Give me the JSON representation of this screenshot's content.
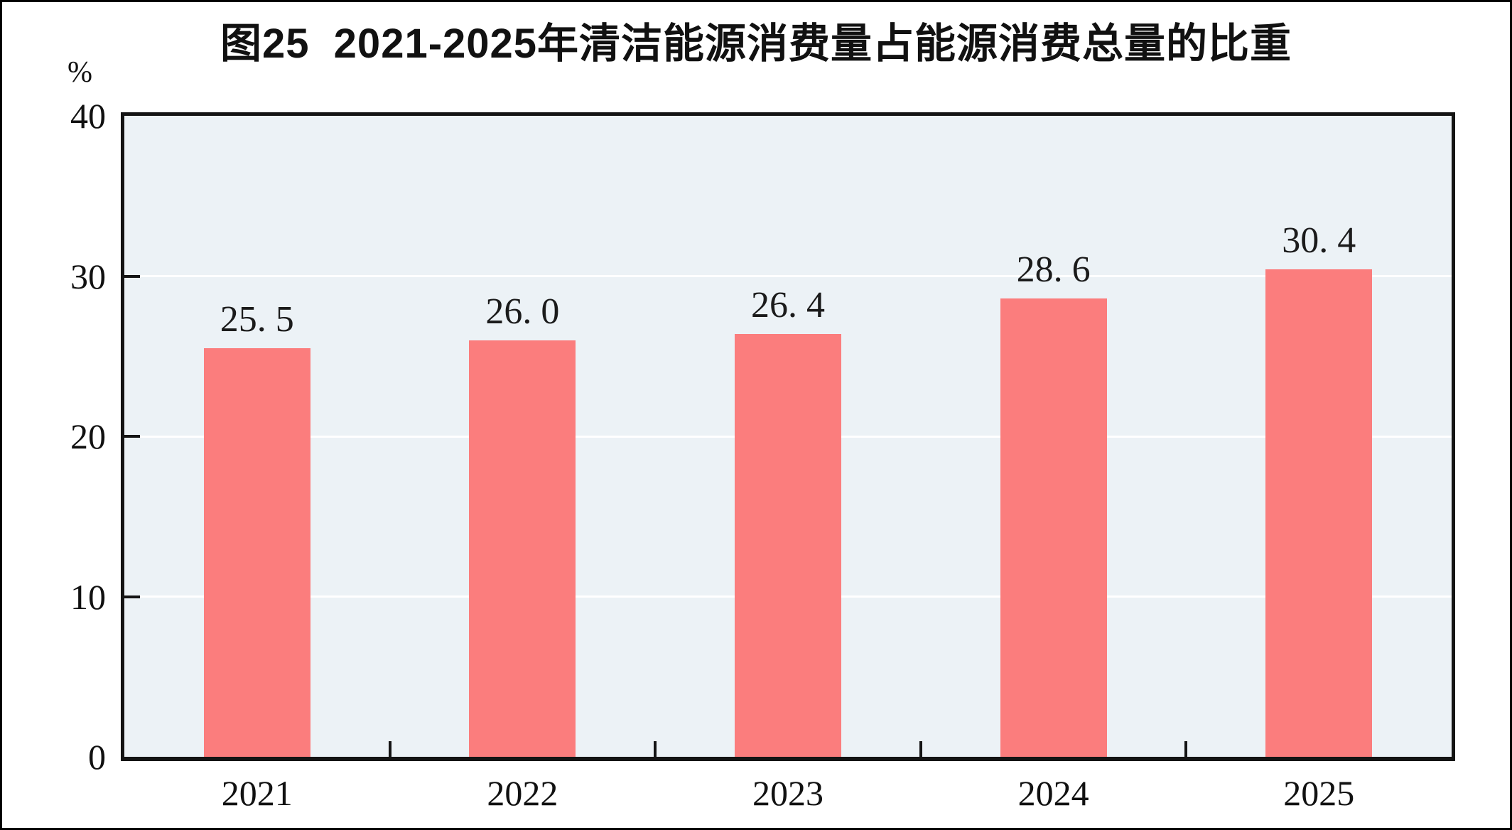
{
  "chart": {
    "title": "图25  2021-2025年清洁能源消费量占能源消费总量的比重",
    "unit": "%"
  },
  "chart_data": {
    "type": "bar",
    "title": "图25  2021-2025年清洁能源消费量占能源消费总量的比重",
    "categories": [
      "2021",
      "2022",
      "2023",
      "2024",
      "2025"
    ],
    "values": [
      25.5,
      26.0,
      26.4,
      28.6,
      30.4
    ],
    "bar_labels": [
      "25. 5",
      "26. 0",
      "26. 4",
      "28. 6",
      "30. 4"
    ],
    "xlabel": "",
    "ylabel": "%",
    "ylim": [
      0,
      40
    ],
    "yticks": [
      0,
      10,
      20,
      30,
      40
    ],
    "grid": "horizontal",
    "legend_position": "none",
    "colors": {
      "bar": "#FB7D7D",
      "plot_background": "#ECF2F6",
      "axis": "#141414",
      "gridline": "#FFFFFF",
      "text": "#111111"
    }
  }
}
